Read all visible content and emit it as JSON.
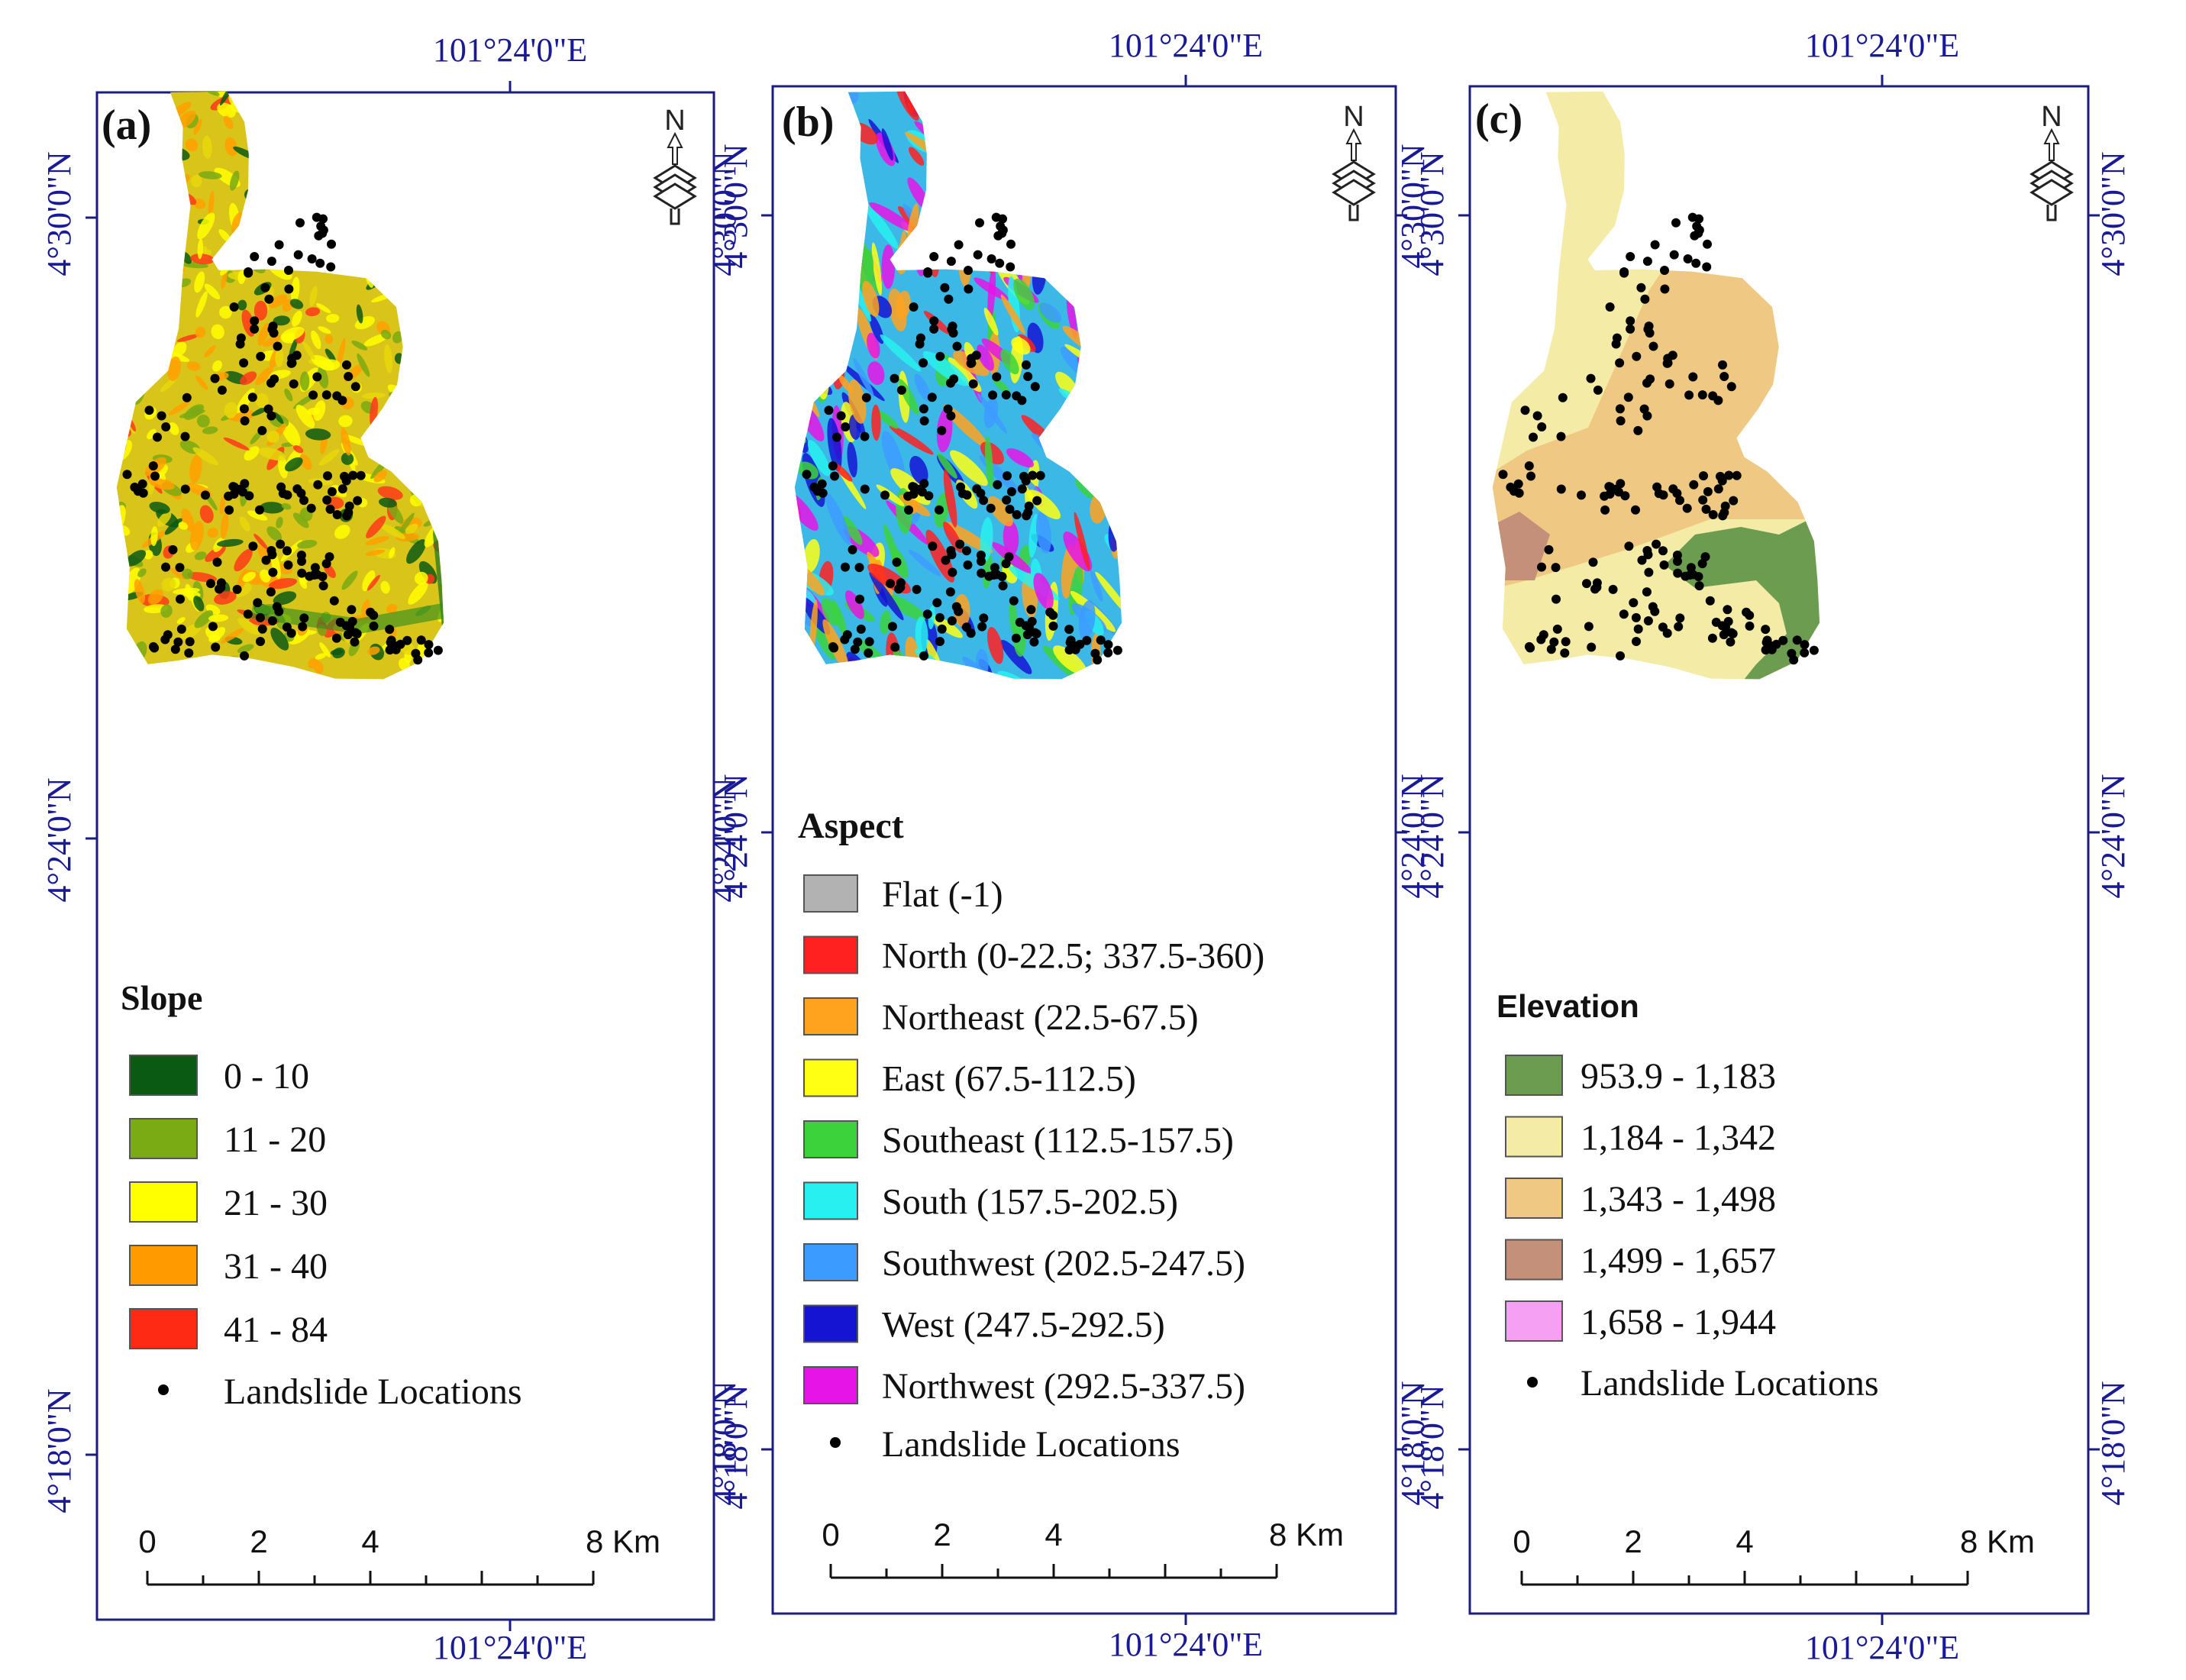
{
  "figure": {
    "panels": [
      {
        "id": "a",
        "label": "(a)",
        "theme": "slope",
        "north_arrow": "N",
        "coord_top": "101°24'0\"E",
        "coord_bottom": "101°24'0\"E",
        "coord_lat_1": "4°30'0\"N",
        "coord_lat_2": "4°24'0\"N",
        "coord_lat_3": "4°18'0\"N",
        "legend_title": "Slope",
        "legend": [
          {
            "label": "0 - 10",
            "color": "#0b5a14"
          },
          {
            "label": "11 - 20",
            "color": "#7aaa14"
          },
          {
            "label": "21 - 30",
            "color": "#ffff00"
          },
          {
            "label": "31 - 40",
            "color": "#ff9a00"
          },
          {
            "label": "41 - 84",
            "color": "#ff2a14"
          }
        ],
        "points_label": "Landslide Locations",
        "scale_ticks": [
          "0",
          "2",
          "4",
          "8 Km"
        ]
      },
      {
        "id": "b",
        "label": "(b)",
        "theme": "aspect",
        "north_arrow": "N",
        "coord_top": "101°24'0\"E",
        "coord_bottom": "101°24'0\"E",
        "coord_lat_1": "4°30'0\"N",
        "coord_lat_2": "4°24'0\"N",
        "coord_lat_3": "4°18'0\"N",
        "legend_title": "Aspect",
        "legend": [
          {
            "label": "Flat (-1)",
            "color": "#b2b2b2"
          },
          {
            "label": "North (0-22.5; 337.5-360)",
            "color": "#ff2020"
          },
          {
            "label": "Northeast (22.5-67.5)",
            "color": "#ffa21e"
          },
          {
            "label": "East (67.5-112.5)",
            "color": "#ffff14"
          },
          {
            "label": "Southeast (112.5-157.5)",
            "color": "#3cd23c"
          },
          {
            "label": "South (157.5-202.5)",
            "color": "#28f0f0"
          },
          {
            "label": "Southwest (202.5-247.5)",
            "color": "#3c9bff"
          },
          {
            "label": "West (247.5-292.5)",
            "color": "#1414d2"
          },
          {
            "label": "Northwest (292.5-337.5)",
            "color": "#e614e6"
          }
        ],
        "points_label": "Landslide Locations",
        "scale_ticks": [
          "0",
          "2",
          "4",
          "8 Km"
        ]
      },
      {
        "id": "c",
        "label": "(c)",
        "theme": "elevation",
        "north_arrow": "N",
        "coord_top": "101°24'0\"E",
        "coord_bottom": "101°24'0\"E",
        "coord_lat_1": "4°30'0\"N",
        "coord_lat_2": "4°24'0\"N",
        "coord_lat_3": "4°18'0\"N",
        "legend_title": "Elevation",
        "legend": [
          {
            "label": "953.9 - 1,183",
            "color": "#6c9c50"
          },
          {
            "label": "1,184 - 1,342",
            "color": "#f3eba6"
          },
          {
            "label": "1,343 - 1,498",
            "color": "#efc983"
          },
          {
            "label": "1,499 - 1,657",
            "color": "#c4907a"
          },
          {
            "label": "1,658 - 1,944",
            "color": "#f6a0f4"
          }
        ],
        "points_label": "Landslide Locations",
        "scale_ticks": [
          "0",
          "2",
          "4",
          "8 Km"
        ]
      }
    ],
    "colors": {
      "frame": "#1c1c80",
      "coordinate_text": "#1a1a96",
      "landslide_point": "#000000"
    }
  }
}
